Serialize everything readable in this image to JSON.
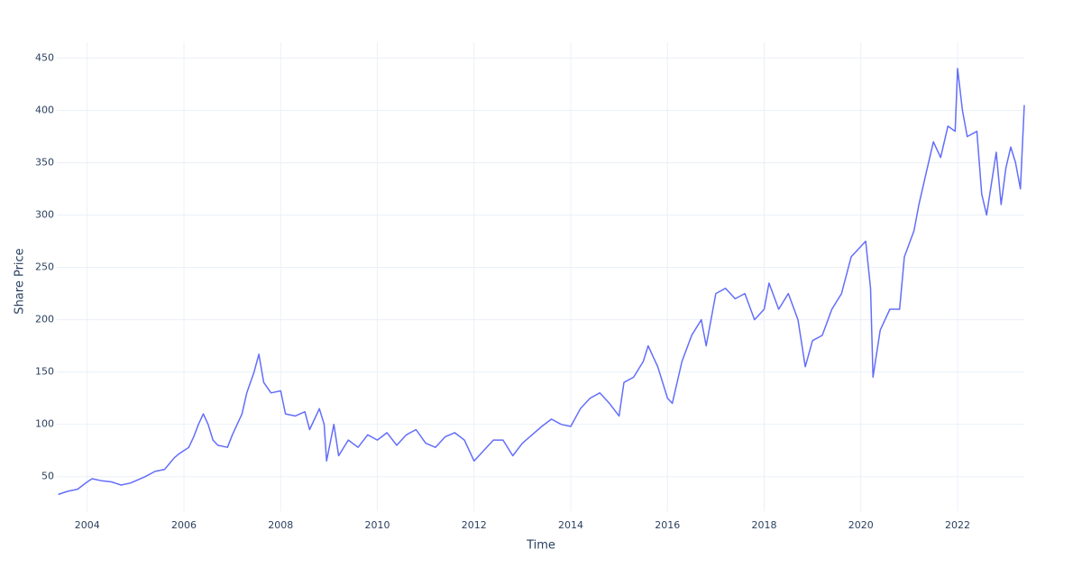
{
  "chart_data": {
    "type": "line",
    "x_label": "Time",
    "y_label": "Share Price",
    "x": [
      2003.4,
      2003.6,
      2003.8,
      2004.0,
      2004.1,
      2004.3,
      2004.5,
      2004.7,
      2004.9,
      2005.0,
      2005.2,
      2005.4,
      2005.6,
      2005.8,
      2005.9,
      2006.0,
      2006.1,
      2006.2,
      2006.3,
      2006.4,
      2006.5,
      2006.6,
      2006.7,
      2006.9,
      2007.0,
      2007.2,
      2007.3,
      2007.45,
      2007.55,
      2007.65,
      2007.8,
      2008.0,
      2008.1,
      2008.3,
      2008.5,
      2008.6,
      2008.8,
      2008.9,
      2008.95,
      2009.1,
      2009.2,
      2009.4,
      2009.6,
      2009.8,
      2010.0,
      2010.2,
      2010.4,
      2010.6,
      2010.8,
      2011.0,
      2011.2,
      2011.4,
      2011.6,
      2011.8,
      2012.0,
      2012.2,
      2012.4,
      2012.6,
      2012.8,
      2013.0,
      2013.2,
      2013.4,
      2013.6,
      2013.8,
      2014.0,
      2014.2,
      2014.4,
      2014.6,
      2014.8,
      2015.0,
      2015.1,
      2015.3,
      2015.5,
      2015.6,
      2015.8,
      2016.0,
      2016.1,
      2016.3,
      2016.5,
      2016.7,
      2016.8,
      2017.0,
      2017.2,
      2017.4,
      2017.6,
      2017.8,
      2018.0,
      2018.1,
      2018.3,
      2018.5,
      2018.7,
      2018.85,
      2019.0,
      2019.2,
      2019.4,
      2019.6,
      2019.8,
      2020.0,
      2020.1,
      2020.2,
      2020.25,
      2020.4,
      2020.6,
      2020.8,
      2020.9,
      2021.1,
      2021.2,
      2021.35,
      2021.5,
      2021.65,
      2021.8,
      2021.95,
      2022.0,
      2022.1,
      2022.2,
      2022.4,
      2022.5,
      2022.6,
      2022.8,
      2022.9,
      2023.0,
      2023.1,
      2023.2,
      2023.3,
      2023.38
    ],
    "series": [
      {
        "name": "Share Price",
        "color": "#636efa",
        "values": [
          33,
          36,
          38,
          45,
          48,
          46,
          45,
          42,
          44,
          46,
          50,
          55,
          57,
          68,
          72,
          75,
          78,
          88,
          100,
          110,
          100,
          85,
          80,
          78,
          90,
          110,
          130,
          150,
          167,
          140,
          130,
          132,
          110,
          108,
          112,
          95,
          115,
          100,
          65,
          100,
          70,
          85,
          78,
          90,
          85,
          92,
          80,
          90,
          95,
          82,
          78,
          88,
          92,
          85,
          65,
          75,
          85,
          85,
          70,
          82,
          90,
          98,
          105,
          100,
          98,
          115,
          125,
          130,
          120,
          108,
          140,
          145,
          160,
          175,
          155,
          125,
          120,
          160,
          185,
          200,
          175,
          225,
          230,
          220,
          225,
          200,
          210,
          235,
          210,
          225,
          200,
          155,
          180,
          185,
          210,
          225,
          260,
          270,
          275,
          230,
          145,
          190,
          210,
          210,
          260,
          285,
          310,
          340,
          370,
          355,
          385,
          380,
          440,
          400,
          375,
          380,
          320,
          300,
          360,
          310,
          345,
          365,
          350,
          325,
          405
        ]
      }
    ],
    "xlim": [
      2003.37,
      2023.38
    ],
    "ylim": [
      17,
      465
    ],
    "xticks": [
      2004,
      2006,
      2008,
      2010,
      2012,
      2014,
      2016,
      2018,
      2020,
      2022
    ],
    "yticks": [
      50,
      100,
      150,
      200,
      250,
      300,
      350,
      400,
      450
    ],
    "grid": true
  }
}
